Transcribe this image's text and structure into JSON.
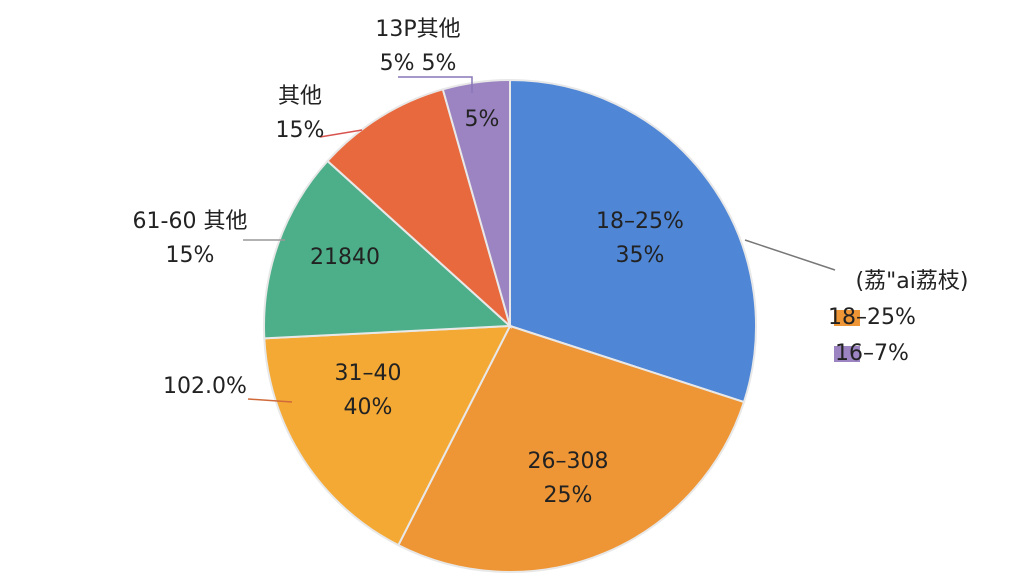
{
  "chart_data": {
    "type": "pie",
    "values": [
      30,
      27.5,
      16.7,
      12.5,
      8.9,
      4.4
    ],
    "colors": [
      "#4f86d6",
      "#ee9535",
      "#f4a934",
      "#4caf8a",
      "#e8693e",
      "#9b84c1"
    ],
    "annotations": [
      [
        "18–25%",
        "35%"
      ],
      [
        "26–308",
        "25%"
      ],
      [
        "31–40",
        "40%"
      ],
      [
        "21840"
      ],
      [
        "5%"
      ],
      [
        "13P其他",
        "5%     5%"
      ],
      [
        "其他",
        "15%"
      ],
      [
        "61-60 其他",
        "15%"
      ],
      [
        "102.0%"
      ]
    ],
    "legend": {
      "title": "(荔\"ai荔枝)",
      "entries": [
        {
          "name": "18–25%",
          "color": "#ee9535"
        },
        {
          "name": "16–7%",
          "color": "#9b84c1"
        }
      ]
    }
  }
}
